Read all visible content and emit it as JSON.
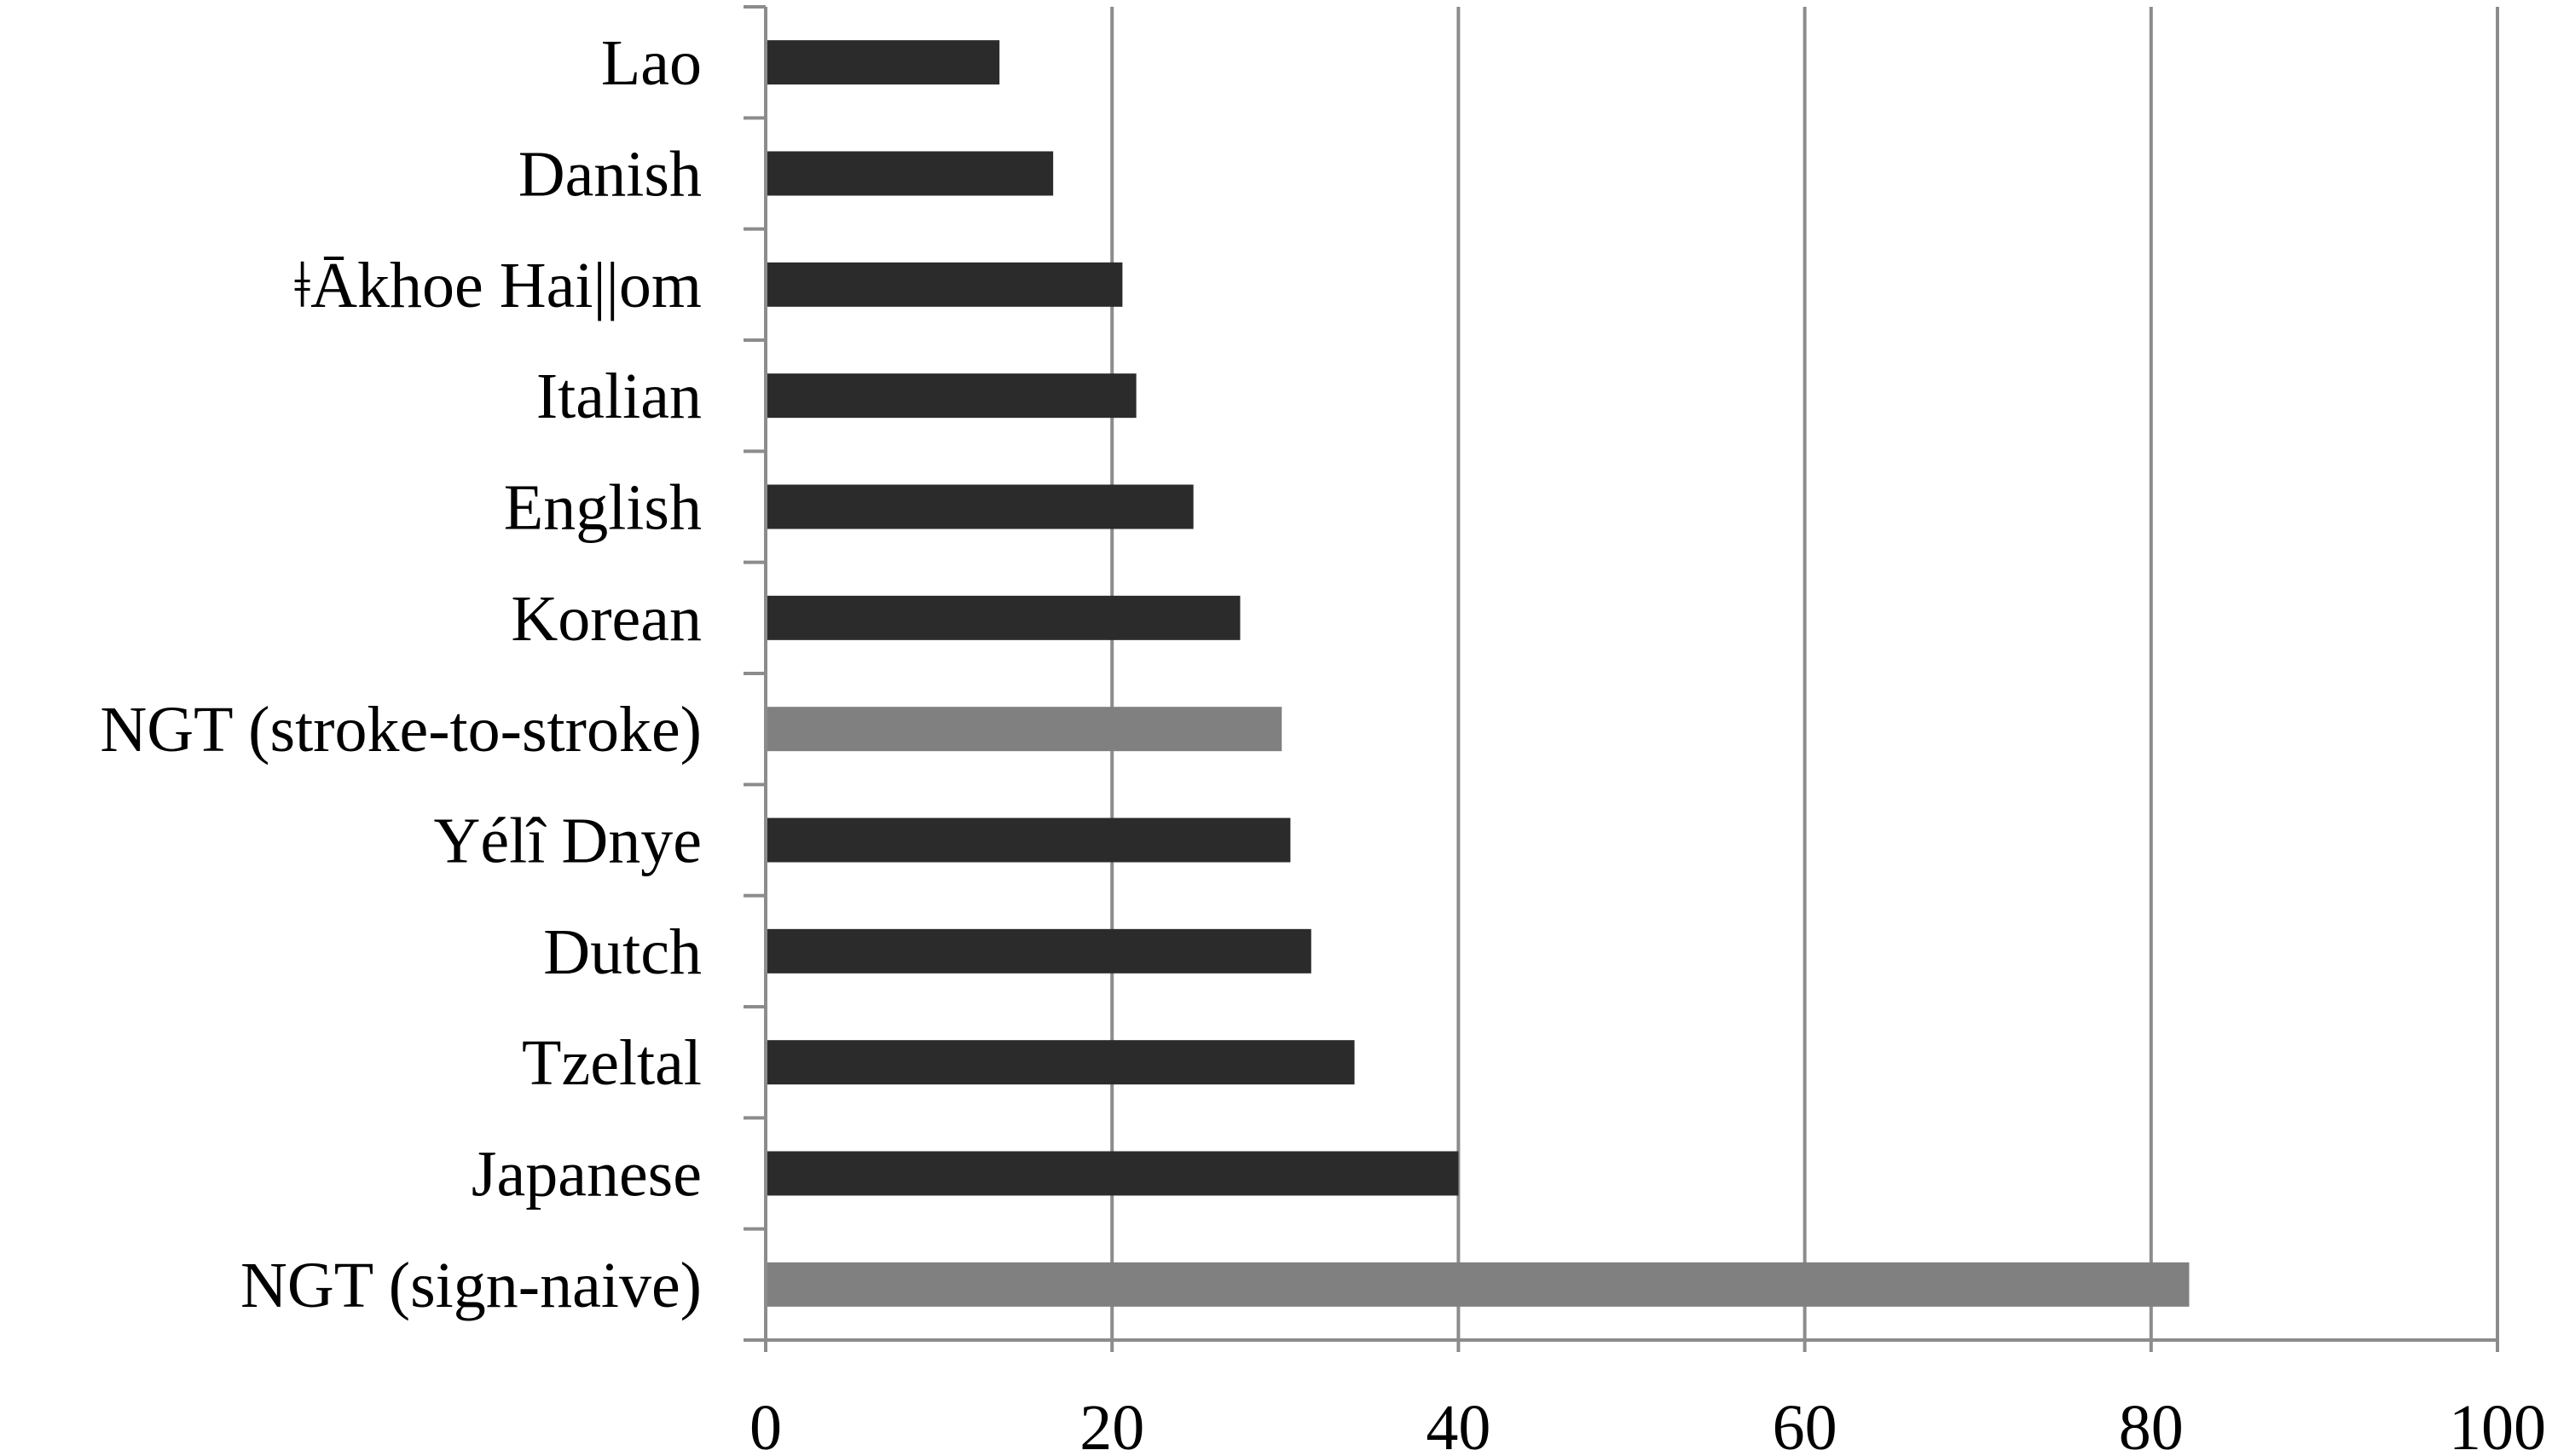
{
  "chart_data": {
    "type": "bar",
    "orientation": "horizontal",
    "categories": [
      "Lao",
      "Danish",
      "ǂĀkhoe Hai||om",
      "Italian",
      "English",
      "Korean",
      "NGT (stroke-to-stroke)",
      "Yélî Dnye",
      "Dutch",
      "Tzeltal",
      "Japanese",
      "NGT (sign-naive)"
    ],
    "values": [
      13.5,
      16.6,
      20.6,
      21.4,
      24.7,
      27.4,
      29.8,
      30.3,
      31.5,
      34.0,
      40.0,
      82.2
    ],
    "highlighted": [
      "NGT (stroke-to-stroke)",
      "NGT (sign-naive)"
    ],
    "colors": {
      "default": "#2b2b2b",
      "highlight": "#808080",
      "grid": "#8c8c8c"
    },
    "xlim": [
      0,
      100
    ],
    "xticks": [
      "0",
      "20",
      "40",
      "60",
      "80",
      "100"
    ],
    "grid": true,
    "title": "",
    "xlabel": "",
    "ylabel": ""
  }
}
